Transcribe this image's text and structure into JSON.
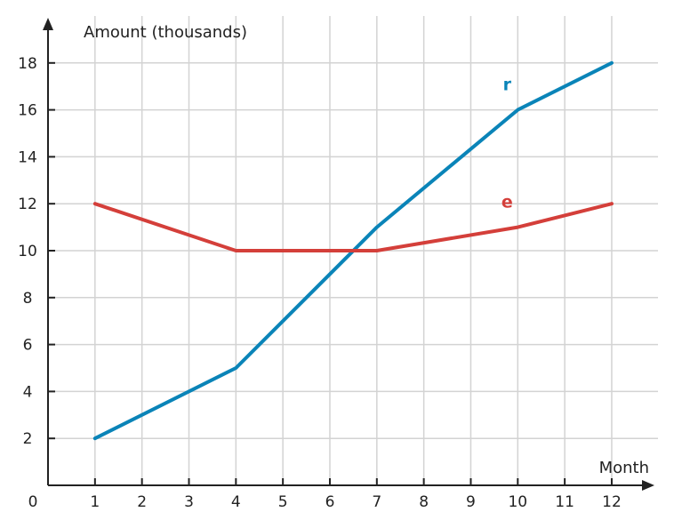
{
  "chart_data": {
    "type": "line",
    "title": "",
    "xlabel": "Month",
    "ylabel": "Amount (thousands)",
    "origin_label": "0",
    "x": [
      1,
      2,
      3,
      4,
      5,
      6,
      7,
      8,
      9,
      10,
      11,
      12
    ],
    "x_ticks": [
      1,
      2,
      3,
      4,
      5,
      6,
      7,
      8,
      9,
      10,
      11,
      12
    ],
    "y_ticks": [
      2,
      4,
      6,
      8,
      10,
      12,
      14,
      16,
      18
    ],
    "xlim": [
      0,
      12.8
    ],
    "ylim": [
      0,
      19.5
    ],
    "grid": true,
    "series": [
      {
        "name": "r",
        "color": "#0a84b8",
        "points": [
          [
            1,
            2
          ],
          [
            4,
            5
          ],
          [
            7,
            11
          ],
          [
            10,
            16
          ],
          [
            12,
            18
          ]
        ]
      },
      {
        "name": "e",
        "color": "#d43f3a",
        "points": [
          [
            1,
            12
          ],
          [
            4,
            10
          ],
          [
            7,
            10
          ],
          [
            10,
            11
          ],
          [
            12,
            12
          ]
        ]
      }
    ]
  }
}
